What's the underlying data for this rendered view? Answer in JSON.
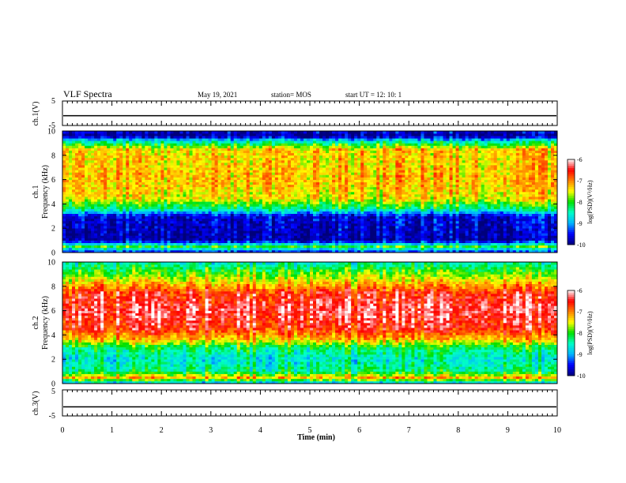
{
  "header": {
    "title": "VLF Spectra",
    "date": "May 19, 2021",
    "station": "station= MOS",
    "start": "start  UT =   12: 10: 1"
  },
  "colors": {
    "spectrum_scale": [
      "#00007a",
      "#0000ff",
      "#00b4ff",
      "#00ffc8",
      "#00e000",
      "#ffff00",
      "#ff8000",
      "#ff0000",
      "#ffffff"
    ],
    "frame": "#000000"
  },
  "chart_data": [
    {
      "type": "line",
      "name_label": "ch.1(V)",
      "ylabel": "ch.1(V)",
      "ylim": [
        -5,
        5
      ],
      "yticks": [
        "5",
        "-5"
      ],
      "xlim": [
        0,
        10
      ],
      "trace_level": -1.0
    },
    {
      "type": "heatmap",
      "ylabel": "ch.1  Frequency (kHz)",
      "ylim": [
        0,
        10
      ],
      "yticks": [
        "0",
        "2",
        "4",
        "6",
        "8",
        "10"
      ],
      "xlim": [
        0,
        10
      ],
      "colorbar": {
        "label": "log(PSD)(V²/Hz)",
        "range": [
          -10,
          -6
        ],
        "ticks": [
          "-6",
          "-7",
          "-8",
          "-9",
          "-10"
        ]
      },
      "spectral_profile": [
        {
          "f": 0.0,
          "level": -9.6
        },
        {
          "f": 0.5,
          "level": -8.0
        },
        {
          "f": 1.0,
          "level": -9.8
        },
        {
          "f": 2.0,
          "level": -9.7
        },
        {
          "f": 3.0,
          "level": -9.6
        },
        {
          "f": 3.6,
          "level": -8.3
        },
        {
          "f": 4.5,
          "level": -7.4
        },
        {
          "f": 6.0,
          "level": -7.2
        },
        {
          "f": 7.5,
          "level": -7.3
        },
        {
          "f": 8.5,
          "level": -7.3
        },
        {
          "f": 9.2,
          "level": -8.6
        },
        {
          "f": 9.6,
          "level": -9.9
        },
        {
          "f": 10.0,
          "level": -9.6
        }
      ]
    },
    {
      "type": "heatmap",
      "ylabel": "ch.2  Frequency (kHz)",
      "ylim": [
        0,
        10
      ],
      "yticks": [
        "0",
        "2",
        "4",
        "6",
        "8",
        "10"
      ],
      "xlim": [
        0,
        10
      ],
      "colorbar": {
        "label": "log(PSD)(V²/Hz)",
        "range": [
          -10,
          -6
        ],
        "ticks": [
          "-6",
          "-7",
          "-8",
          "-9",
          "-10"
        ]
      },
      "spectral_profile": [
        {
          "f": 0.0,
          "level": -9.0
        },
        {
          "f": 0.5,
          "level": -7.2
        },
        {
          "f": 1.0,
          "level": -8.3
        },
        {
          "f": 2.0,
          "level": -8.6
        },
        {
          "f": 3.0,
          "level": -8.2
        },
        {
          "f": 3.6,
          "level": -7.3
        },
        {
          "f": 4.5,
          "level": -6.6
        },
        {
          "f": 6.0,
          "level": -6.3
        },
        {
          "f": 7.5,
          "level": -6.6
        },
        {
          "f": 8.2,
          "level": -7.2
        },
        {
          "f": 9.0,
          "level": -7.8
        },
        {
          "f": 9.6,
          "level": -8.2
        },
        {
          "f": 10.0,
          "level": -8.5
        }
      ]
    },
    {
      "type": "line",
      "ylabel": "ch.3(V)",
      "ylim": [
        -5,
        5
      ],
      "yticks": [
        "5",
        "-5"
      ],
      "xlim": [
        0,
        10
      ],
      "xticks": [
        "0",
        "1",
        "2",
        "3",
        "4",
        "5",
        "6",
        "7",
        "8",
        "9",
        "10"
      ],
      "xlabel": "Time  (min)",
      "trace_level": -1.5
    }
  ]
}
